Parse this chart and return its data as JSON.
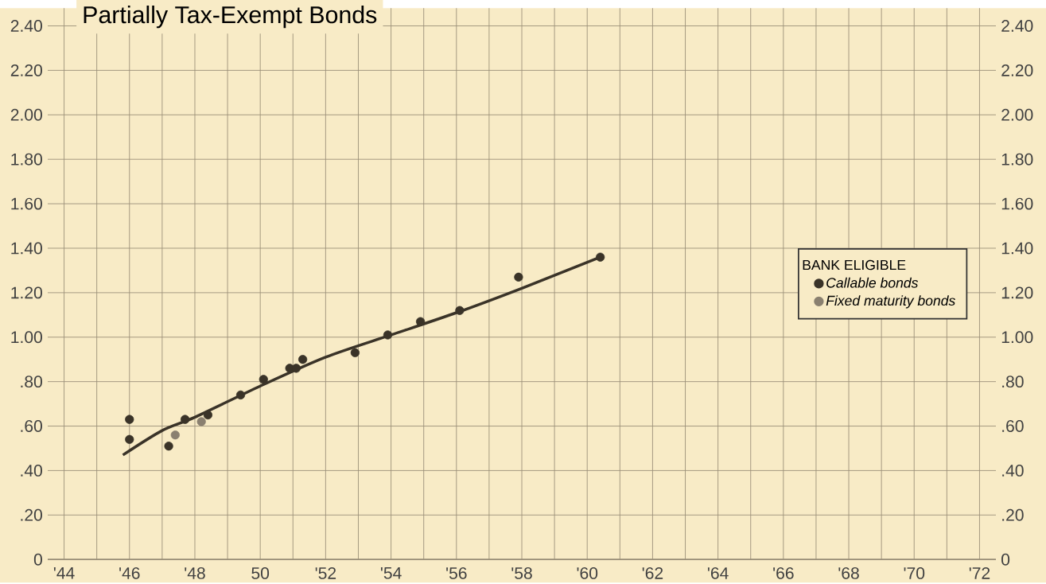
{
  "chart_data": {
    "type": "scatter",
    "title": "Partially Tax-Exempt Bonds",
    "legend_title": "BANK ELIGIBLE",
    "series": [
      {
        "name": "Callable bonds",
        "marker": "circle",
        "color": "#3a3328",
        "x": [
          46,
          46,
          47.2,
          47.7,
          48.4,
          49.4,
          50.1,
          50.9,
          51.1,
          51.3,
          52.9,
          53.9,
          54.9,
          56.1,
          57.9,
          60.4
        ],
        "values": [
          0.63,
          0.54,
          0.51,
          0.63,
          0.65,
          0.74,
          0.81,
          0.86,
          0.86,
          0.9,
          0.93,
          1.01,
          1.07,
          1.12,
          1.27,
          1.36
        ]
      },
      {
        "name": "Fixed maturity bonds",
        "marker": "circle",
        "color": "#8a8070",
        "x": [
          47.4,
          48.2
        ],
        "values": [
          0.56,
          0.62
        ]
      },
      {
        "type": "line",
        "marker": "none",
        "color": "#3a3328",
        "x": [
          45.8,
          47,
          48,
          50,
          52,
          54,
          56,
          58,
          60.4
        ],
        "values": [
          0.47,
          0.58,
          0.64,
          0.78,
          0.91,
          1.01,
          1.11,
          1.22,
          1.36
        ]
      }
    ],
    "xlim": [
      43.5,
      72.5
    ],
    "xticks": [
      {
        "value": 44,
        "label": "'44"
      },
      {
        "value": 45,
        "label": null
      },
      {
        "value": 46,
        "label": "'46"
      },
      {
        "value": 47,
        "label": null
      },
      {
        "value": 48,
        "label": "'48"
      },
      {
        "value": 49,
        "label": null
      },
      {
        "value": 50,
        "label": "50"
      },
      {
        "value": 51,
        "label": null
      },
      {
        "value": 52,
        "label": "'52"
      },
      {
        "value": 53,
        "label": null
      },
      {
        "value": 54,
        "label": "'54"
      },
      {
        "value": 55,
        "label": null
      },
      {
        "value": 56,
        "label": "'56"
      },
      {
        "value": 57,
        "label": null
      },
      {
        "value": 58,
        "label": "'58"
      },
      {
        "value": 59,
        "label": null
      },
      {
        "value": 60,
        "label": "'60"
      },
      {
        "value": 61,
        "label": null
      },
      {
        "value": 62,
        "label": "'62"
      },
      {
        "value": 63,
        "label": null
      },
      {
        "value": 64,
        "label": "'64"
      },
      {
        "value": 65,
        "label": null
      },
      {
        "value": 66,
        "label": "'66"
      },
      {
        "value": 67,
        "label": null
      },
      {
        "value": 68,
        "label": "'68"
      },
      {
        "value": 69,
        "label": null
      },
      {
        "value": 70,
        "label": "'70"
      },
      {
        "value": 71,
        "label": null
      },
      {
        "value": 72,
        "label": "'72"
      }
    ],
    "ylim": [
      0,
      2.48
    ],
    "yticks": [
      0,
      {
        "value": 0.2,
        "label": ".20"
      },
      {
        "value": 0.4,
        "label": ".40"
      },
      {
        "value": 0.6,
        "label": ".60"
      },
      {
        "value": 0.8,
        "label": ".80"
      },
      {
        "value": 1.0,
        "label": "1.00"
      },
      {
        "value": 1.2,
        "label": "1.20"
      },
      {
        "value": 1.4,
        "label": "1.40"
      },
      {
        "value": 1.6,
        "label": "1.60"
      },
      {
        "value": 1.8,
        "label": "1.80"
      },
      {
        "value": 2.0,
        "label": "2.00"
      },
      {
        "value": 2.2,
        "label": "2.20"
      },
      {
        "value": 2.4,
        "label": "2.40"
      }
    ],
    "y2lim": [
      0,
      2.48
    ],
    "y2ticks": [
      0,
      {
        "value": 0.2,
        "label": ".20"
      },
      {
        "value": 0.4,
        "label": ".40"
      },
      {
        "value": 0.6,
        "label": ".60"
      },
      {
        "value": 0.8,
        "label": ".80"
      },
      {
        "value": 1.0,
        "label": "1.00"
      },
      {
        "value": 1.2,
        "label": "1.20"
      },
      {
        "value": 1.4,
        "label": "1.40"
      },
      {
        "value": 1.6,
        "label": "1.60"
      },
      {
        "value": 1.8,
        "label": "1.80"
      },
      {
        "value": 2.0,
        "label": "2.00"
      },
      {
        "value": 2.2,
        "label": "2.20"
      },
      {
        "value": 2.4,
        "label": "2.40"
      }
    ],
    "grid": true,
    "legend": "right"
  }
}
